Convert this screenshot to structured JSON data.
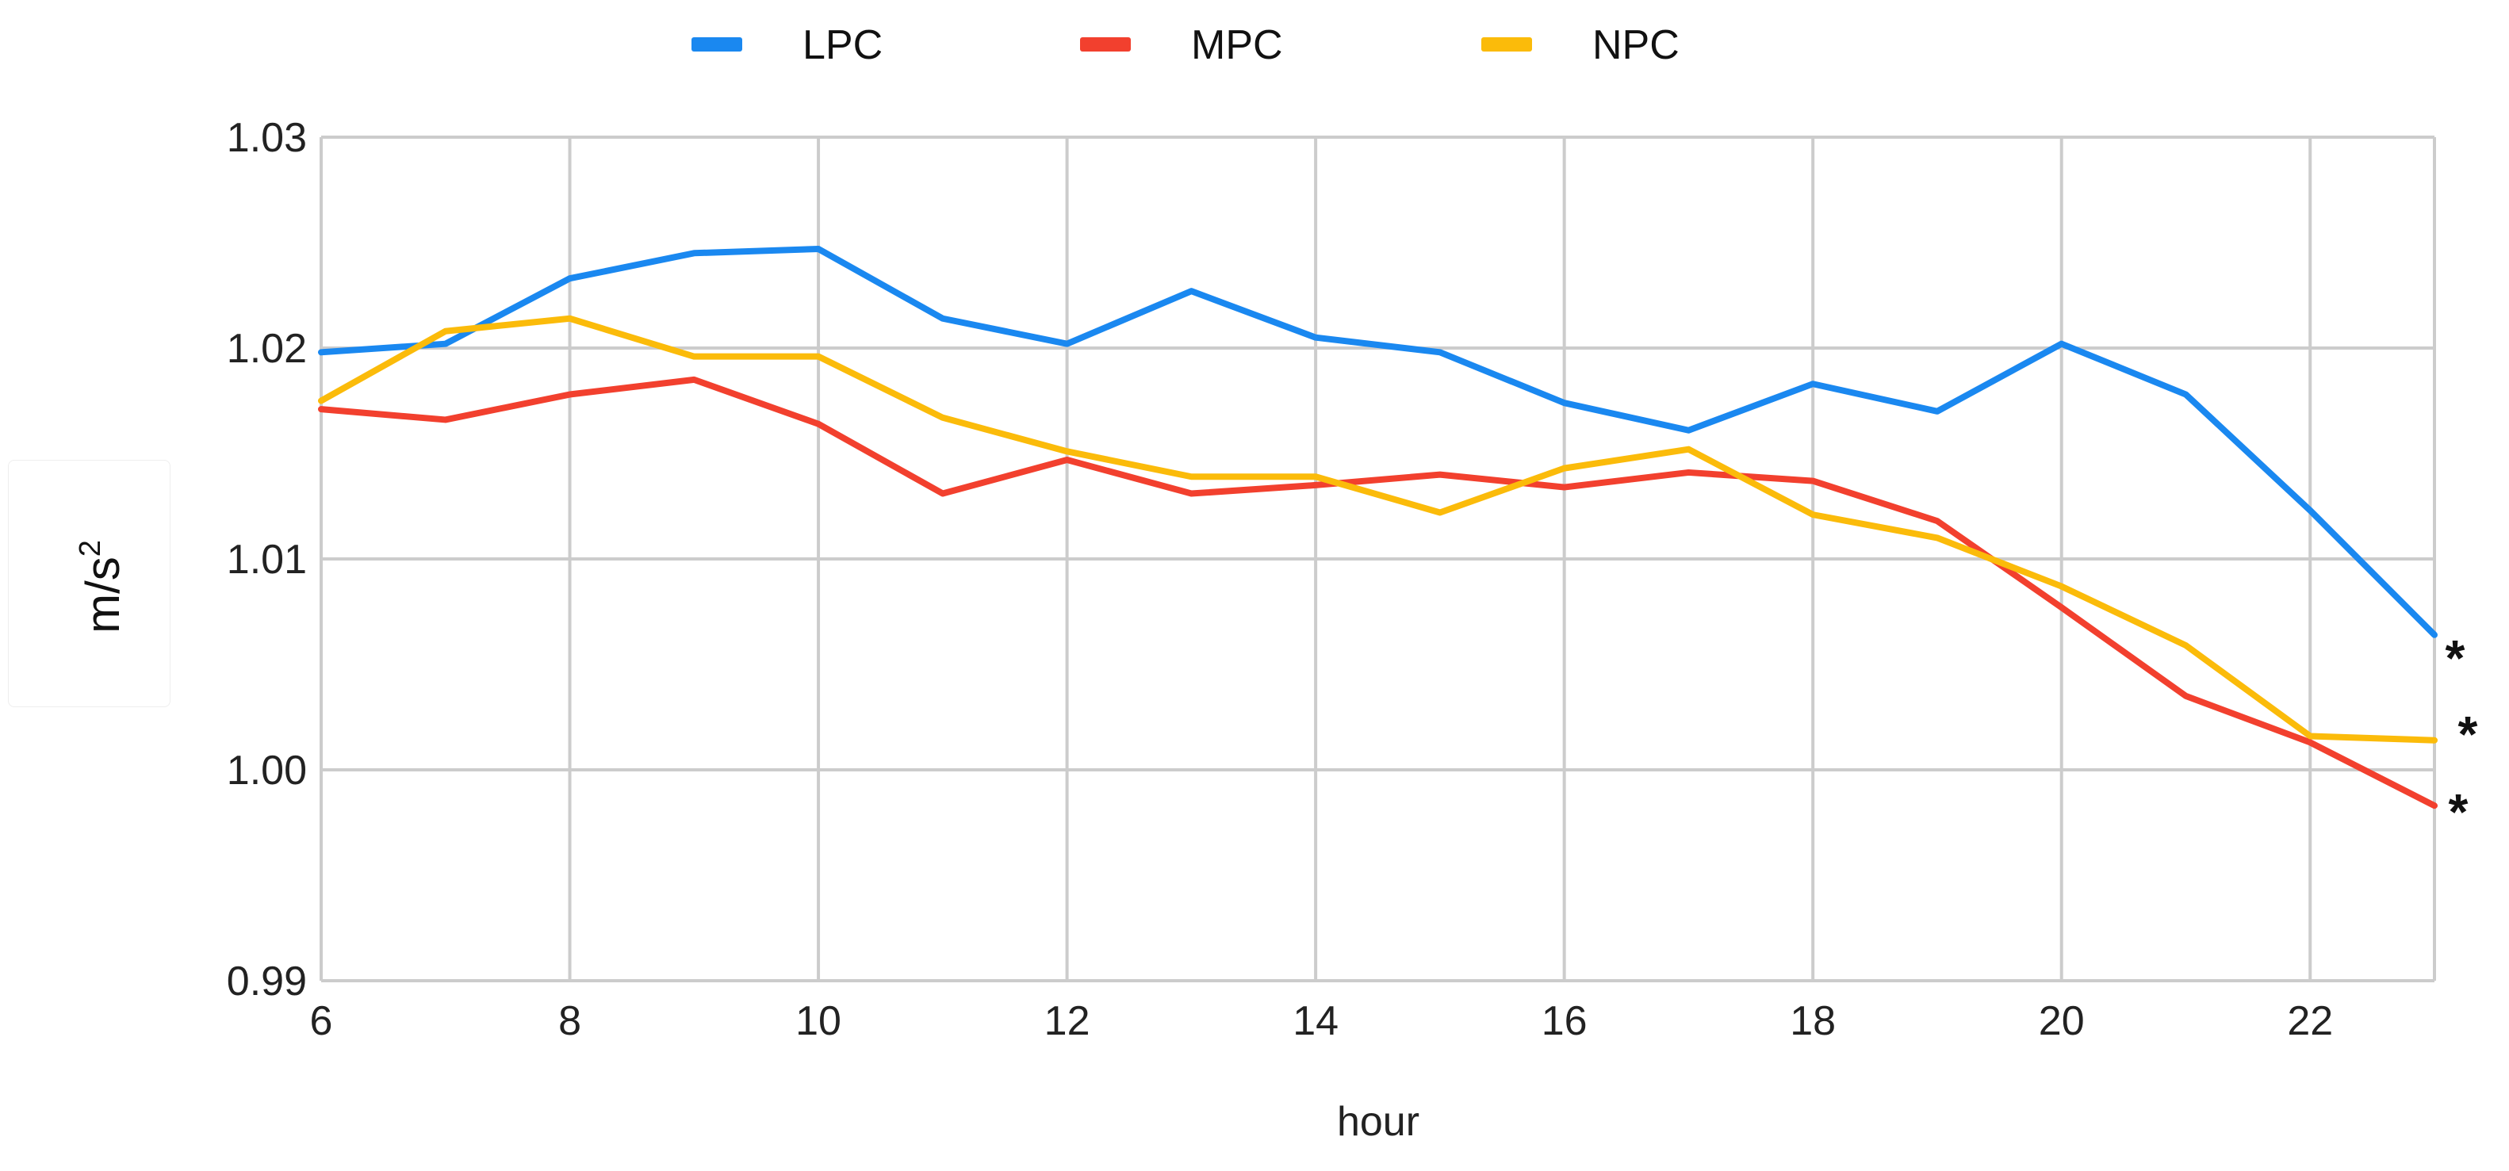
{
  "chart_data": {
    "type": "line",
    "title": "",
    "xlabel": "hour",
    "ylabel": "m/s",
    "ylabel_superscript": "2",
    "x": [
      6,
      7,
      8,
      9,
      10,
      11,
      12,
      13,
      14,
      15,
      16,
      17,
      18,
      19,
      20,
      21,
      22,
      23
    ],
    "xlim": [
      6,
      23
    ],
    "ylim": [
      0.99,
      1.03
    ],
    "x_ticks": [
      6,
      8,
      10,
      12,
      14,
      16,
      18,
      20,
      22
    ],
    "x_tick_labels": [
      "6",
      "8",
      "10",
      "12",
      "14",
      "16",
      "18",
      "20",
      "22"
    ],
    "y_ticks": [
      0.99,
      1.0,
      1.01,
      1.02,
      1.03
    ],
    "y_tick_labels": [
      "0.99",
      "1.00",
      "1.01",
      "1.02",
      "1.03"
    ],
    "grid": true,
    "legend_position": "top",
    "series": [
      {
        "name": "LPC",
        "color": "#1a88f0",
        "values": [
          1.0198,
          1.0202,
          1.0233,
          1.0245,
          1.0247,
          1.0214,
          1.0202,
          1.0227,
          1.0205,
          1.0198,
          1.0174,
          1.0161,
          1.0183,
          1.017,
          1.0202,
          1.0178,
          1.0123,
          1.0064
        ]
      },
      {
        "name": "MPC",
        "color": "#f2402e",
        "values": [
          1.0171,
          1.0166,
          1.0178,
          1.0185,
          1.0164,
          1.0131,
          1.0147,
          1.0131,
          1.0135,
          1.014,
          1.0134,
          1.0141,
          1.0137,
          1.0118,
          1.0077,
          1.0035,
          1.0013,
          0.9983
        ]
      },
      {
        "name": "NPC",
        "color": "#fbbb0a",
        "values": [
          1.0175,
          1.0208,
          1.0214,
          1.0196,
          1.0196,
          1.0167,
          1.0151,
          1.0139,
          1.0139,
          1.0122,
          1.0143,
          1.0152,
          1.0121,
          1.011,
          1.0087,
          1.0059,
          1.0016,
          1.0014
        ]
      }
    ],
    "annotations": [
      "*",
      "*",
      "*"
    ]
  }
}
